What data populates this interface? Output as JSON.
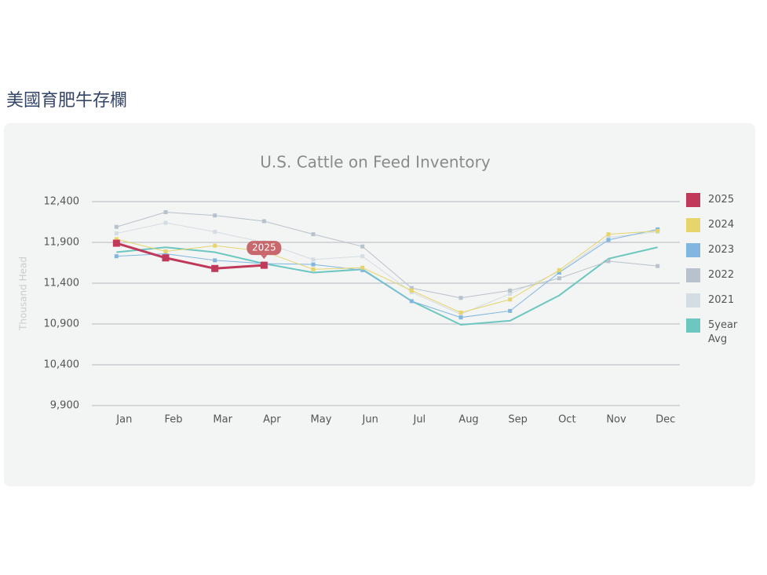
{
  "page_title": "美國育肥牛存欄",
  "chart_data": {
    "type": "line",
    "title": "U.S. Cattle on Feed Inventory",
    "y_label": "Thousand Head",
    "categories": [
      "Jan",
      "Feb",
      "Mar",
      "Apr",
      "May",
      "Jun",
      "Jul",
      "Aug",
      "Sep",
      "Oct",
      "Nov",
      "Dec"
    ],
    "ylim": [
      9900,
      12400
    ],
    "yticks": [
      {
        "value": 9900,
        "label": "9,900"
      },
      {
        "value": 10400,
        "label": "10,400"
      },
      {
        "value": 10900,
        "label": "10,900"
      },
      {
        "value": 11400,
        "label": "11,400"
      },
      {
        "value": 11900,
        "label": "11,900"
      },
      {
        "value": 12400,
        "label": "12,400"
      }
    ],
    "grid": true,
    "legend": "right",
    "tooltip_series": 0,
    "series": [
      {
        "name": "2025",
        "color": "#c0395a",
        "line_width": 3,
        "marker": true,
        "values": [
          11890,
          11710,
          11580,
          11620,
          null,
          null,
          null,
          null,
          null,
          null,
          null,
          null
        ]
      },
      {
        "name": "2024",
        "color": "#e5d56b",
        "line_width": 1,
        "marker": true,
        "values": [
          11940,
          11790,
          11860,
          11790,
          11570,
          11590,
          11310,
          11040,
          11200,
          11560,
          12000,
          12040
        ]
      },
      {
        "name": "2023",
        "color": "#80b6e0",
        "line_width": 1,
        "marker": true,
        "values": [
          11730,
          11760,
          11680,
          11640,
          11630,
          11560,
          11180,
          10980,
          11060,
          11530,
          11930,
          12060
        ]
      },
      {
        "name": "2022",
        "color": "#b8c2cc",
        "line_width": 1,
        "marker": true,
        "values": [
          12090,
          12270,
          12230,
          12160,
          12000,
          11850,
          11340,
          11220,
          11310,
          11460,
          11670,
          11610
        ]
      },
      {
        "name": "2021",
        "color": "#d4dde3",
        "line_width": 1,
        "marker": true,
        "values": [
          12010,
          12140,
          12030,
          11900,
          11690,
          11730,
          11290,
          11020,
          11270,
          11540,
          11960,
          12030
        ]
      },
      {
        "name": "5year Avg",
        "color": "#6cc7c0",
        "line_width": 2,
        "marker": false,
        "values": [
          11780,
          11840,
          11780,
          11640,
          11530,
          11570,
          11180,
          10890,
          10940,
          11250,
          11700,
          11840
        ]
      }
    ]
  }
}
